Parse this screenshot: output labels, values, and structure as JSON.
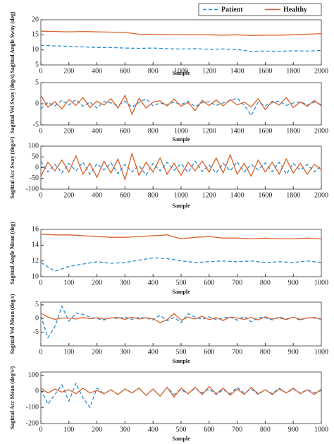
{
  "chart_data": [
    {
      "type": "line",
      "xlabel": "Sample",
      "ylabel": "Sagittal Angle Sway (deg)",
      "legend": "top-right",
      "x": [
        0,
        100,
        200,
        300,
        400,
        500,
        600,
        700,
        800,
        900,
        1000,
        1100,
        1200,
        1300,
        1400,
        1500,
        1600,
        1700,
        1800,
        1900,
        2000
      ],
      "series": [
        {
          "name": "Patient",
          "color": "#2a8ccf",
          "dash": true,
          "values": [
            11.5,
            11.3,
            11.2,
            11.0,
            10.8,
            10.8,
            10.6,
            10.5,
            10.6,
            10.4,
            10.3,
            10.4,
            10.2,
            10.3,
            10.1,
            9.5,
            9.6,
            9.5,
            9.7,
            9.6,
            9.8
          ]
        },
        {
          "name": "Healthy",
          "color": "#d9622b",
          "dash": false,
          "values": [
            16.2,
            16.1,
            16.0,
            16.1,
            16.0,
            15.9,
            15.8,
            15.2,
            15.1,
            15.1,
            15.0,
            15.0,
            15.0,
            14.9,
            15.0,
            14.8,
            14.9,
            14.9,
            15.0,
            15.2,
            15.4
          ]
        }
      ],
      "xlim": [
        0,
        2000
      ],
      "xticks": [
        0,
        200,
        400,
        600,
        800,
        1000,
        1200,
        1400,
        1600,
        1800,
        2000
      ],
      "ylim": [
        5,
        20
      ],
      "yticks": [
        5,
        10,
        15,
        20
      ]
    },
    {
      "type": "line",
      "xlabel": "Sample",
      "ylabel": "Sagittal Vel Sway (deg/s)",
      "x": [
        0,
        50,
        100,
        150,
        200,
        250,
        300,
        350,
        400,
        450,
        500,
        550,
        600,
        650,
        700,
        750,
        800,
        850,
        900,
        950,
        1000,
        1050,
        1100,
        1150,
        1200,
        1250,
        1300,
        1350,
        1400,
        1450,
        1500,
        1550,
        1600,
        1650,
        1700,
        1750,
        1800,
        1850,
        1900,
        1950,
        2000
      ],
      "series": [
        {
          "color": "#2a8ccf",
          "dash": true,
          "values": [
            -1.2,
            0.3,
            -0.5,
            0.8,
            -0.3,
            1.0,
            -0.6,
            0.4,
            -1.0,
            0.5,
            0.2,
            -0.4,
            0.6,
            -0.8,
            0.3,
            1.2,
            -0.5,
            0.2,
            -0.3,
            0.4,
            -0.2,
            0.6,
            -0.7,
            0.3,
            0.5,
            -0.4,
            0.2,
            0.8,
            1.3,
            -0.3,
            -2.8,
            0.4,
            -0.5,
            0.3,
            0.6,
            -0.4,
            0.2,
            0.5,
            -0.3,
            0.4,
            -0.2
          ]
        },
        {
          "color": "#d9622b",
          "dash": false,
          "values": [
            2.0,
            -0.8,
            0.5,
            -1.2,
            1.0,
            -0.4,
            1.5,
            -0.9,
            0.6,
            -0.3,
            1.2,
            -1.0,
            2.0,
            -2.5,
            1.3,
            -1.0,
            0.4,
            0.7,
            -0.5,
            1.1,
            -0.6,
            0.3,
            -1.6,
            0.8,
            -0.4,
            0.9,
            -0.5,
            1.0,
            -0.3,
            0.4,
            -0.8,
            1.2,
            -1.4,
            0.6,
            -0.3,
            1.5,
            -0.9,
            0.4,
            -0.6,
            0.8,
            -0.5
          ]
        }
      ],
      "xlim": [
        0,
        2000
      ],
      "xticks": [
        0,
        200,
        400,
        600,
        800,
        1000,
        1200,
        1400,
        1600,
        1800,
        2000
      ],
      "ylim": [
        -5,
        5
      ],
      "yticks": [
        -5,
        0,
        5
      ]
    },
    {
      "type": "line",
      "xlabel": "Sample",
      "ylabel": "Sagittal Acc Sway (deg/s²)",
      "x": [
        0,
        50,
        100,
        150,
        200,
        250,
        300,
        350,
        400,
        450,
        500,
        550,
        600,
        650,
        700,
        750,
        800,
        850,
        900,
        950,
        1000,
        1050,
        1100,
        1150,
        1200,
        1250,
        1300,
        1350,
        1400,
        1450,
        1500,
        1550,
        1600,
        1650,
        1700,
        1750,
        1800,
        1850,
        1900,
        1950,
        2000
      ],
      "series": [
        {
          "color": "#2a8ccf",
          "dash": true,
          "values": [
            30,
            -20,
            15,
            -25,
            20,
            -15,
            25,
            -30,
            18,
            -10,
            22,
            -28,
            15,
            -20,
            10,
            -35,
            20,
            -15,
            25,
            -12,
            18,
            -22,
            30,
            -18,
            12,
            -25,
            20,
            -15,
            28,
            -20,
            15,
            -10,
            22,
            -18,
            25,
            -30,
            20,
            -12,
            15,
            -20,
            10
          ]
        },
        {
          "color": "#d9622b",
          "dash": false,
          "values": [
            -40,
            25,
            -15,
            35,
            -20,
            55,
            -30,
            20,
            -45,
            30,
            -25,
            40,
            -55,
            65,
            -35,
            25,
            -20,
            45,
            -30,
            20,
            -35,
            25,
            -15,
            30,
            -20,
            45,
            -25,
            60,
            -30,
            20,
            -40,
            35,
            -20,
            25,
            -30,
            40,
            -25,
            20,
            -30,
            15,
            -10
          ]
        }
      ],
      "xlim": [
        0,
        2000
      ],
      "xticks": [
        0,
        200,
        400,
        600,
        800,
        1000,
        1200,
        1400,
        1600,
        1800,
        2000
      ],
      "ylim": [
        -100,
        100
      ],
      "yticks": [
        -100,
        -50,
        0,
        50,
        100
      ]
    },
    {
      "type": "line",
      "xlabel": "Sample",
      "ylabel": "Sagittal Angle Mean (deg)",
      "x": [
        0,
        50,
        100,
        150,
        200,
        250,
        300,
        350,
        400,
        450,
        500,
        550,
        600,
        650,
        700,
        750,
        800,
        850,
        900,
        950,
        1000
      ],
      "series": [
        {
          "color": "#2a8ccf",
          "dash": true,
          "values": [
            11.8,
            10.7,
            11.3,
            11.6,
            11.9,
            11.7,
            11.8,
            12.1,
            12.4,
            12.3,
            12.0,
            11.8,
            11.9,
            12.0,
            11.9,
            12.0,
            11.8,
            11.9,
            11.8,
            12.0,
            11.8
          ]
        },
        {
          "color": "#d9622b",
          "dash": false,
          "values": [
            15.4,
            15.3,
            15.3,
            15.2,
            15.1,
            15.0,
            15.0,
            15.1,
            15.2,
            15.3,
            14.8,
            15.0,
            15.1,
            14.9,
            14.9,
            14.8,
            14.9,
            14.8,
            14.8,
            14.9,
            14.8
          ]
        }
      ],
      "xlim": [
        0,
        1000
      ],
      "xticks": [
        0,
        100,
        200,
        300,
        400,
        500,
        600,
        700,
        800,
        900,
        1000
      ],
      "ylim": [
        10,
        16
      ],
      "yticks": [
        10,
        12,
        14,
        16
      ]
    },
    {
      "type": "line",
      "xlabel": "Sample",
      "ylabel": "Sagittal Vel Mean (deg/s)",
      "x": [
        0,
        25,
        50,
        75,
        100,
        125,
        150,
        175,
        200,
        225,
        250,
        275,
        300,
        325,
        350,
        375,
        400,
        425,
        450,
        475,
        500,
        525,
        550,
        575,
        600,
        625,
        650,
        675,
        700,
        725,
        750,
        775,
        800,
        825,
        850,
        875,
        900,
        925,
        950,
        975,
        1000
      ],
      "series": [
        {
          "color": "#2a8ccf",
          "dash": true,
          "values": [
            1,
            -7,
            -3,
            4.5,
            -1,
            2,
            1.5,
            0.5,
            0,
            -0.5,
            0.3,
            0,
            0.5,
            -0.3,
            0.4,
            0.2,
            -0.5,
            1.2,
            -0.8,
            0.4,
            -1.5,
            1.8,
            0.5,
            -0.3,
            0.6,
            -0.4,
            0.3,
            0.5,
            -0.6,
            0.8,
            -1.2,
            0.4,
            0.3,
            -0.5,
            0.6,
            -0.2,
            0.4,
            -0.6,
            0.3,
            0.2,
            -0.3
          ]
        },
        {
          "color": "#d9622b",
          "dash": false,
          "values": [
            2,
            0.5,
            -0.3,
            0.2,
            0.1,
            -0.2,
            0.4,
            -0.1,
            0.3,
            -0.2,
            0.2,
            0.4,
            -0.3,
            0.5,
            -0.2,
            0.3,
            -0.1,
            -1.5,
            -0.4,
            1.8,
            -0.6,
            0.5,
            -0.2,
            0.8,
            -0.4,
            0.3,
            -0.7,
            0.5,
            0.2,
            -0.3,
            0.4,
            -0.5,
            0.6,
            -0.2,
            0.3,
            -0.4,
            0.5,
            -0.3,
            0.2,
            0.4,
            -0.2
          ]
        }
      ],
      "xlim": [
        0,
        1000
      ],
      "xticks": [
        0,
        100,
        200,
        300,
        400,
        500,
        600,
        700,
        800,
        900,
        1000
      ],
      "ylim": [
        -10,
        6
      ],
      "yticks": [
        -5,
        0,
        5
      ]
    },
    {
      "type": "line",
      "xlabel": "Sample",
      "ylabel": "Sagittal Acc Mean (deg/s²)",
      "x": [
        0,
        25,
        50,
        75,
        100,
        125,
        150,
        175,
        200,
        225,
        250,
        275,
        300,
        325,
        350,
        375,
        400,
        425,
        450,
        475,
        500,
        525,
        550,
        575,
        600,
        625,
        650,
        675,
        700,
        725,
        750,
        775,
        800,
        825,
        850,
        875,
        900,
        925,
        950,
        975,
        1000
      ],
      "series": [
        {
          "color": "#2a8ccf",
          "dash": true,
          "values": [
            10,
            -80,
            -20,
            40,
            -60,
            50,
            -40,
            -100,
            20,
            -15,
            10,
            -20,
            15,
            -10,
            20,
            -25,
            15,
            -30,
            25,
            -20,
            10,
            -15,
            20,
            -10,
            15,
            -20,
            10,
            -15,
            25,
            -10,
            15,
            -20,
            10,
            -15,
            20,
            -10,
            15,
            -12,
            10,
            -8,
            5
          ]
        },
        {
          "color": "#d9622b",
          "dash": false,
          "values": [
            20,
            -10,
            15,
            -5,
            10,
            -15,
            20,
            -10,
            5,
            -15,
            10,
            -20,
            15,
            -10,
            20,
            -25,
            15,
            -30,
            25,
            -35,
            20,
            -15,
            25,
            -20,
            30,
            -15,
            20,
            -25,
            15,
            -20,
            25,
            -15,
            10,
            -20,
            15,
            -10,
            20,
            -15,
            10,
            -20,
            15
          ]
        }
      ],
      "xlim": [
        0,
        1000
      ],
      "xticks": [
        0,
        100,
        200,
        300,
        400,
        500,
        600,
        700,
        800,
        900,
        1000
      ],
      "ylim": [
        -200,
        120
      ],
      "yticks": [
        -200,
        -100,
        0,
        100
      ]
    }
  ]
}
